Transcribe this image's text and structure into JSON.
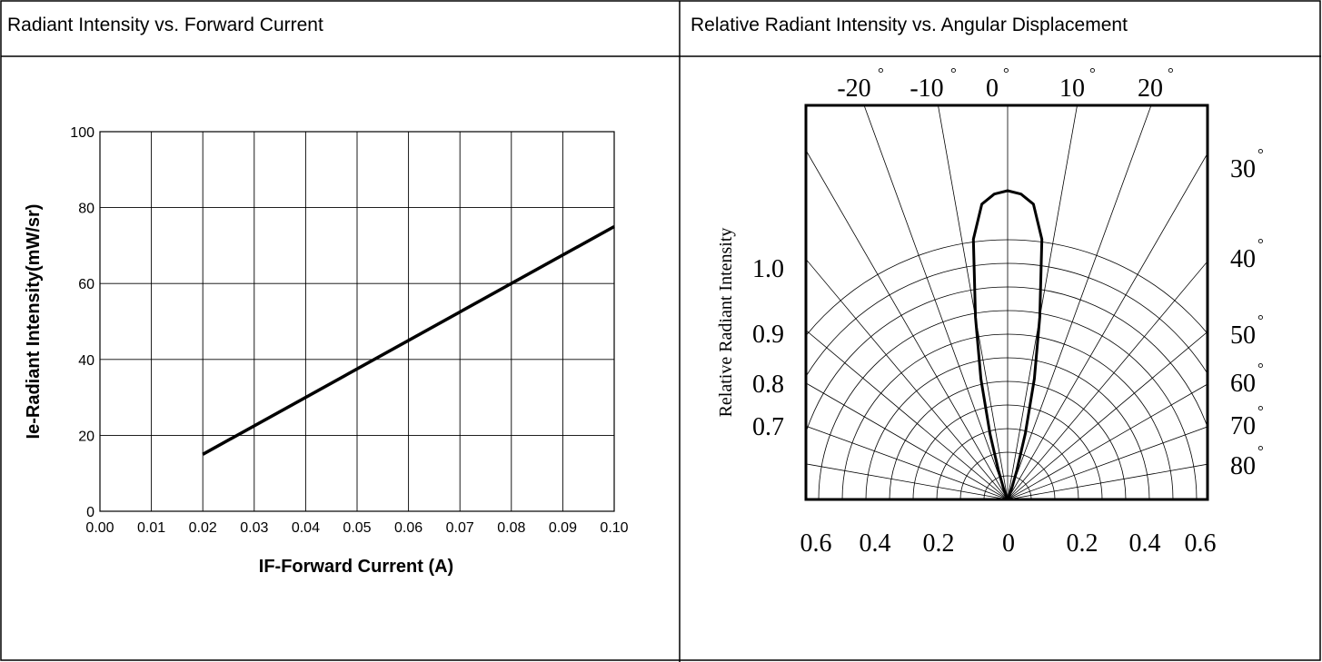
{
  "panels": {
    "left_title": "Radiant Intensity vs. Forward Current",
    "right_title": "Relative Radiant Intensity vs. Angular Displacement"
  },
  "chart_data": [
    {
      "type": "line",
      "title": "Radiant Intensity vs. Forward Current",
      "xlabel": "IF-Forward Current (A)",
      "ylabel": "Ie-Radiant Intensity(mW/sr)",
      "xlim": [
        0.0,
        0.1
      ],
      "ylim": [
        0,
        100
      ],
      "x_ticks": [
        "0.00",
        "0.01",
        "0.02",
        "0.03",
        "0.04",
        "0.05",
        "0.06",
        "0.07",
        "0.08",
        "0.09",
        "0.10"
      ],
      "y_ticks": [
        "0",
        "20",
        "40",
        "60",
        "80",
        "100"
      ],
      "grid": true,
      "series": [
        {
          "x": [
            0.02,
            0.1
          ],
          "y": [
            15,
            75
          ]
        }
      ]
    },
    {
      "type": "line",
      "title": "Relative Radiant Intensity vs. Angular Displacement",
      "ylabel": "Relative Radiant Intensity",
      "top_angle_labels": [
        "-20",
        "-10",
        "0",
        "10",
        "20"
      ],
      "right_angle_labels": [
        "30",
        "40",
        "50",
        "60",
        "70",
        "80"
      ],
      "radial_labels": [
        "1.0",
        "0.9",
        "0.8",
        "0.7"
      ],
      "bottom_labels": [
        "0.6",
        "0.4",
        "0.2",
        "0",
        "0.2",
        "0.4",
        "0.6"
      ],
      "degree_symbol": "°",
      "grid": true,
      "pattern": {
        "angles_deg": [
          0,
          2.5,
          5,
          7.5,
          10,
          12.5,
          15,
          17.5,
          20,
          25,
          30
        ],
        "relative_intensity": [
          1.0,
          0.99,
          0.96,
          0.85,
          0.6,
          0.4,
          0.22,
          0.1,
          0.04,
          0.01,
          0.0
        ]
      }
    }
  ]
}
